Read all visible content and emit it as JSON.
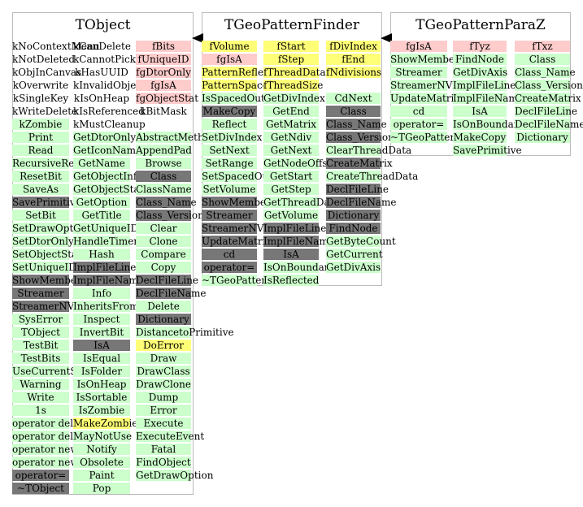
{
  "colors": {
    "green": "#ccffcc",
    "gray": "#777777",
    "pink": "#ffcccc",
    "yellow": "#ffff77",
    "border": "#bbbbbb"
  },
  "classes": [
    {
      "title": "TObject",
      "columns": [
        [
          {
            "t": "kNoContextMenu",
            "c": "none"
          },
          {
            "t": "kNotDeleted",
            "c": "none"
          },
          {
            "t": "kObjInCanvas",
            "c": "none"
          },
          {
            "t": "kOverwrite",
            "c": "none"
          },
          {
            "t": "kSingleKey",
            "c": "none"
          },
          {
            "t": "kWriteDelete",
            "c": "none"
          },
          {
            "t": "kZombie",
            "c": "green"
          },
          {
            "t": "Print",
            "c": "green"
          },
          {
            "t": "Read",
            "c": "green"
          },
          {
            "t": "RecursiveRemove",
            "c": "green"
          },
          {
            "t": "ResetBit",
            "c": "green"
          },
          {
            "t": "SaveAs",
            "c": "green"
          },
          {
            "t": "SavePrimitive",
            "c": "gray"
          },
          {
            "t": "SetBit",
            "c": "green"
          },
          {
            "t": "SetDrawOption",
            "c": "green"
          },
          {
            "t": "SetDtorOnly",
            "c": "green"
          },
          {
            "t": "SetObjectStat",
            "c": "green"
          },
          {
            "t": "SetUniqueID",
            "c": "green"
          },
          {
            "t": "ShowMembers",
            "c": "gray"
          },
          {
            "t": "Streamer",
            "c": "gray"
          },
          {
            "t": "StreamerNVirtual",
            "c": "gray"
          },
          {
            "t": "SysError",
            "c": "green"
          },
          {
            "t": "TObject",
            "c": "green"
          },
          {
            "t": "TestBit",
            "c": "green"
          },
          {
            "t": "TestBits",
            "c": "green"
          },
          {
            "t": "UseCurrentStyle",
            "c": "green"
          },
          {
            "t": "Warning",
            "c": "green"
          },
          {
            "t": "Write",
            "c": "green"
          },
          {
            "t": "1s",
            "c": "green"
          },
          {
            "t": "operator delete",
            "c": "green"
          },
          {
            "t": "operator delete[]",
            "c": "green"
          },
          {
            "t": "operator new",
            "c": "green"
          },
          {
            "t": "operator new[]",
            "c": "green"
          },
          {
            "t": "operator=",
            "c": "gray"
          },
          {
            "t": "~TObject",
            "c": "gray"
          }
        ],
        [
          {
            "t": "kCanDelete",
            "c": "none"
          },
          {
            "t": "kCannotPick",
            "c": "none"
          },
          {
            "t": "kHasUUID",
            "c": "none"
          },
          {
            "t": "kInvalidObject",
            "c": "none"
          },
          {
            "t": "kIsOnHeap",
            "c": "none"
          },
          {
            "t": "kIsReferenced",
            "c": "none"
          },
          {
            "t": "kMustCleanup",
            "c": "none"
          },
          {
            "t": "GetDtorOnly",
            "c": "green"
          },
          {
            "t": "GetIconName",
            "c": "green"
          },
          {
            "t": "GetName",
            "c": "green"
          },
          {
            "t": "GetObjectInfo",
            "c": "green"
          },
          {
            "t": "GetObjectStat",
            "c": "green"
          },
          {
            "t": "GetOption",
            "c": "green"
          },
          {
            "t": "GetTitle",
            "c": "green"
          },
          {
            "t": "GetUniqueID",
            "c": "green"
          },
          {
            "t": "HandleTimer",
            "c": "green"
          },
          {
            "t": "Hash",
            "c": "green"
          },
          {
            "t": "ImplFileLine",
            "c": "gray"
          },
          {
            "t": "ImplFileName",
            "c": "gray"
          },
          {
            "t": "Info",
            "c": "green"
          },
          {
            "t": "InheritsFrom",
            "c": "green"
          },
          {
            "t": "Inspect",
            "c": "green"
          },
          {
            "t": "InvertBit",
            "c": "green"
          },
          {
            "t": "IsA",
            "c": "gray"
          },
          {
            "t": "IsEqual",
            "c": "green"
          },
          {
            "t": "IsFolder",
            "c": "green"
          },
          {
            "t": "IsOnHeap",
            "c": "green"
          },
          {
            "t": "IsSortable",
            "c": "green"
          },
          {
            "t": "IsZombie",
            "c": "green"
          },
          {
            "t": "MakeZombie",
            "c": "yellow"
          },
          {
            "t": "MayNotUse",
            "c": "green"
          },
          {
            "t": "Notify",
            "c": "green"
          },
          {
            "t": "Obsolete",
            "c": "green"
          },
          {
            "t": "Paint",
            "c": "green"
          },
          {
            "t": "Pop",
            "c": "green"
          }
        ],
        [
          {
            "t": "fBits",
            "c": "pink"
          },
          {
            "t": "fUniqueID",
            "c": "pink"
          },
          {
            "t": "fgDtorOnly",
            "c": "pink"
          },
          {
            "t": "fgIsA",
            "c": "pink"
          },
          {
            "t": "fgObjectStat",
            "c": "pink"
          },
          {
            "t": "kBitMask",
            "c": "none"
          },
          {
            "t": "",
            "c": "none"
          },
          {
            "t": "AbstractMethod",
            "c": "green"
          },
          {
            "t": "AppendPad",
            "c": "green"
          },
          {
            "t": "Browse",
            "c": "green"
          },
          {
            "t": "Class",
            "c": "gray"
          },
          {
            "t": "ClassName",
            "c": "green"
          },
          {
            "t": "Class_Name",
            "c": "gray"
          },
          {
            "t": "Class_Version",
            "c": "gray"
          },
          {
            "t": "Clear",
            "c": "green"
          },
          {
            "t": "Clone",
            "c": "green"
          },
          {
            "t": "Compare",
            "c": "green"
          },
          {
            "t": "Copy",
            "c": "green"
          },
          {
            "t": "DeclFileLine",
            "c": "gray"
          },
          {
            "t": "DeclFileName",
            "c": "gray"
          },
          {
            "t": "Delete",
            "c": "green"
          },
          {
            "t": "Dictionary",
            "c": "gray"
          },
          {
            "t": "DistancetoPrimitive",
            "c": "green"
          },
          {
            "t": "DoError",
            "c": "yellow"
          },
          {
            "t": "Draw",
            "c": "green"
          },
          {
            "t": "DrawClass",
            "c": "green"
          },
          {
            "t": "DrawClone",
            "c": "green"
          },
          {
            "t": "Dump",
            "c": "green"
          },
          {
            "t": "Error",
            "c": "green"
          },
          {
            "t": "Execute",
            "c": "green"
          },
          {
            "t": "ExecuteEvent",
            "c": "green"
          },
          {
            "t": "Fatal",
            "c": "green"
          },
          {
            "t": "FindObject",
            "c": "green"
          },
          {
            "t": "GetDrawOption",
            "c": "green"
          }
        ]
      ]
    },
    {
      "title": "TGeoPatternFinder",
      "columns": [
        [
          {
            "t": "fVolume",
            "c": "yellow"
          },
          {
            "t": "fgIsA",
            "c": "pink"
          },
          {
            "t": "PatternReflected",
            "c": "yellow"
          },
          {
            "t": "PatternSpacedOut",
            "c": "yellow"
          },
          {
            "t": "IsSpacedOut",
            "c": "green"
          },
          {
            "t": "MakeCopy",
            "c": "gray"
          },
          {
            "t": "Reflect",
            "c": "green"
          },
          {
            "t": "SetDivIndex",
            "c": "green"
          },
          {
            "t": "SetNext",
            "c": "green"
          },
          {
            "t": "SetRange",
            "c": "green"
          },
          {
            "t": "SetSpacedOut",
            "c": "green"
          },
          {
            "t": "SetVolume",
            "c": "green"
          },
          {
            "t": "ShowMembers",
            "c": "gray"
          },
          {
            "t": "Streamer",
            "c": "gray"
          },
          {
            "t": "StreamerNVirtual",
            "c": "gray"
          },
          {
            "t": "UpdateMatrix",
            "c": "gray"
          },
          {
            "t": "cd",
            "c": "gray"
          },
          {
            "t": "operator=",
            "c": "gray"
          },
          {
            "t": "~TGeoPatternFinder",
            "c": "green"
          }
        ],
        [
          {
            "t": "fStart",
            "c": "yellow"
          },
          {
            "t": "fStep",
            "c": "yellow"
          },
          {
            "t": "fThreadData",
            "c": "yellow"
          },
          {
            "t": "fThreadSize",
            "c": "yellow"
          },
          {
            "t": "GetDivIndex",
            "c": "green"
          },
          {
            "t": "GetEnd",
            "c": "green"
          },
          {
            "t": "GetMatrix",
            "c": "green"
          },
          {
            "t": "GetNdiv",
            "c": "green"
          },
          {
            "t": "GetNext",
            "c": "green"
          },
          {
            "t": "GetNodeOffset",
            "c": "green"
          },
          {
            "t": "GetStart",
            "c": "green"
          },
          {
            "t": "GetStep",
            "c": "green"
          },
          {
            "t": "GetThreadData",
            "c": "green"
          },
          {
            "t": "GetVolume",
            "c": "green"
          },
          {
            "t": "ImplFileLine",
            "c": "gray"
          },
          {
            "t": "ImplFileName",
            "c": "gray"
          },
          {
            "t": "IsA",
            "c": "gray"
          },
          {
            "t": "IsOnBoundary",
            "c": "green"
          },
          {
            "t": "IsReflected",
            "c": "green"
          }
        ],
        [
          {
            "t": "fDivIndex",
            "c": "yellow"
          },
          {
            "t": "fEnd",
            "c": "yellow"
          },
          {
            "t": "fNdivisions",
            "c": "yellow"
          },
          {
            "t": "",
            "c": "none"
          },
          {
            "t": "CdNext",
            "c": "green"
          },
          {
            "t": "Class",
            "c": "gray"
          },
          {
            "t": "Class_Name",
            "c": "gray"
          },
          {
            "t": "Class_Version",
            "c": "gray"
          },
          {
            "t": "ClearThreadData",
            "c": "green"
          },
          {
            "t": "CreateMatrix",
            "c": "gray"
          },
          {
            "t": "CreateThreadData",
            "c": "green"
          },
          {
            "t": "DeclFileLine",
            "c": "gray"
          },
          {
            "t": "DeclFileName",
            "c": "gray"
          },
          {
            "t": "Dictionary",
            "c": "gray"
          },
          {
            "t": "FindNode",
            "c": "gray"
          },
          {
            "t": "GetByteCount",
            "c": "green"
          },
          {
            "t": "GetCurrent",
            "c": "green"
          },
          {
            "t": "GetDivAxis",
            "c": "green"
          }
        ]
      ]
    },
    {
      "title": "TGeoPatternParaZ",
      "columns": [
        [
          {
            "t": "fgIsA",
            "c": "pink"
          },
          {
            "t": "ShowMembers",
            "c": "green"
          },
          {
            "t": "Streamer",
            "c": "green"
          },
          {
            "t": "StreamerNVirtual",
            "c": "green"
          },
          {
            "t": "UpdateMatrix",
            "c": "green"
          },
          {
            "t": "cd",
            "c": "green"
          },
          {
            "t": "operator=",
            "c": "green"
          },
          {
            "t": "~TGeoPatternParaZ",
            "c": "green"
          }
        ],
        [
          {
            "t": "fTyz",
            "c": "pink"
          },
          {
            "t": "FindNode",
            "c": "green"
          },
          {
            "t": "GetDivAxis",
            "c": "green"
          },
          {
            "t": "ImplFileLine",
            "c": "green"
          },
          {
            "t": "ImplFileName",
            "c": "green"
          },
          {
            "t": "IsA",
            "c": "green"
          },
          {
            "t": "IsOnBoundary",
            "c": "green"
          },
          {
            "t": "MakeCopy",
            "c": "green"
          },
          {
            "t": "SavePrimitive",
            "c": "green"
          }
        ],
        [
          {
            "t": "fTxz",
            "c": "pink"
          },
          {
            "t": "Class",
            "c": "green"
          },
          {
            "t": "Class_Name",
            "c": "green"
          },
          {
            "t": "Class_Version",
            "c": "green"
          },
          {
            "t": "CreateMatrix",
            "c": "green"
          },
          {
            "t": "DeclFileLine",
            "c": "green"
          },
          {
            "t": "DeclFileName",
            "c": "green"
          },
          {
            "t": "Dictionary",
            "c": "green"
          }
        ]
      ]
    }
  ]
}
